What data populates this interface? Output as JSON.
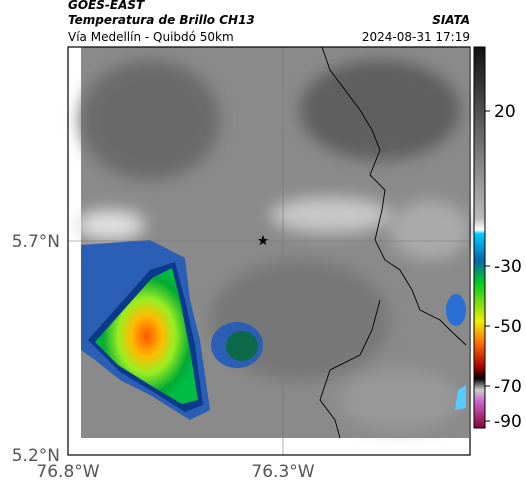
{
  "header": {
    "title": "GOES-EAST",
    "subtitle": "Temperatura de Brillo CH13",
    "location": "Vía Medellín - Quibdó 50km",
    "source": "SIATA",
    "timestamp": "2024-08-31 17:19"
  },
  "axes": {
    "y_labels": [
      "5.7°N",
      "5.2°N"
    ],
    "x_labels": [
      "76.8°W",
      "76.3°W"
    ]
  },
  "colorbar": {
    "labels": [
      "20",
      "-30",
      "-50",
      "-70",
      "-90"
    ]
  }
}
